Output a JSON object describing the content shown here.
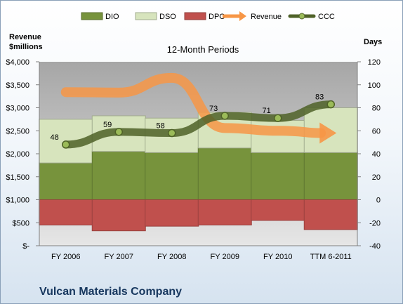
{
  "company": "Vulcan Materials Company",
  "chart_data": {
    "type": "bar",
    "title": "12-Month Periods",
    "y_left_label": [
      "Revenue",
      "$millions"
    ],
    "y_right_label": "Days",
    "categories": [
      "FY 2006",
      "FY 2007",
      "FY 2008",
      "FY 2009",
      "FY 2010",
      "TTM 6-2011"
    ],
    "left_axis": {
      "range": [
        0,
        4000
      ],
      "ticks": [
        0,
        500,
        1000,
        1500,
        2000,
        2500,
        3000,
        3500,
        4000
      ],
      "tick_labels": [
        "$-",
        "$500",
        "$1,000",
        "$1,500",
        "$2,000",
        "$2,500",
        "$3,000",
        "$3,500",
        "$4,000"
      ]
    },
    "right_axis": {
      "range": [
        -40,
        120
      ],
      "ticks": [
        -40,
        -20,
        0,
        20,
        40,
        60,
        80,
        100,
        120
      ],
      "tick_labels": [
        "-40",
        "-20",
        "0",
        "20",
        "40",
        "60",
        "80",
        "100",
        "120"
      ]
    },
    "series": [
      {
        "name": "DIO",
        "axis": "right",
        "kind": "stacked-bar",
        "color": "#77933c",
        "values": [
          32,
          42,
          41,
          45,
          41,
          41
        ]
      },
      {
        "name": "DSO",
        "axis": "right",
        "kind": "stacked-bar",
        "color": "#d7e4bd",
        "values": [
          38,
          31,
          30,
          31,
          28,
          39
        ]
      },
      {
        "name": "DPO",
        "axis": "right",
        "kind": "negative-bar",
        "color": "#c0504d",
        "values": [
          -22,
          -27,
          -23,
          -22,
          -18,
          -26
        ]
      },
      {
        "name": "Revenue",
        "axis": "left",
        "kind": "arrow-line",
        "color": "#f79646",
        "values": [
          3340,
          3330,
          3650,
          2560,
          2500,
          2450
        ]
      },
      {
        "name": "CCC",
        "axis": "right",
        "kind": "line",
        "color": "#4f6228",
        "values": [
          48,
          59,
          58,
          73,
          71,
          83
        ],
        "labels": [
          "48",
          "59",
          "58",
          "73",
          "71",
          "83"
        ]
      }
    ],
    "grid": false,
    "legend_position": "top"
  }
}
